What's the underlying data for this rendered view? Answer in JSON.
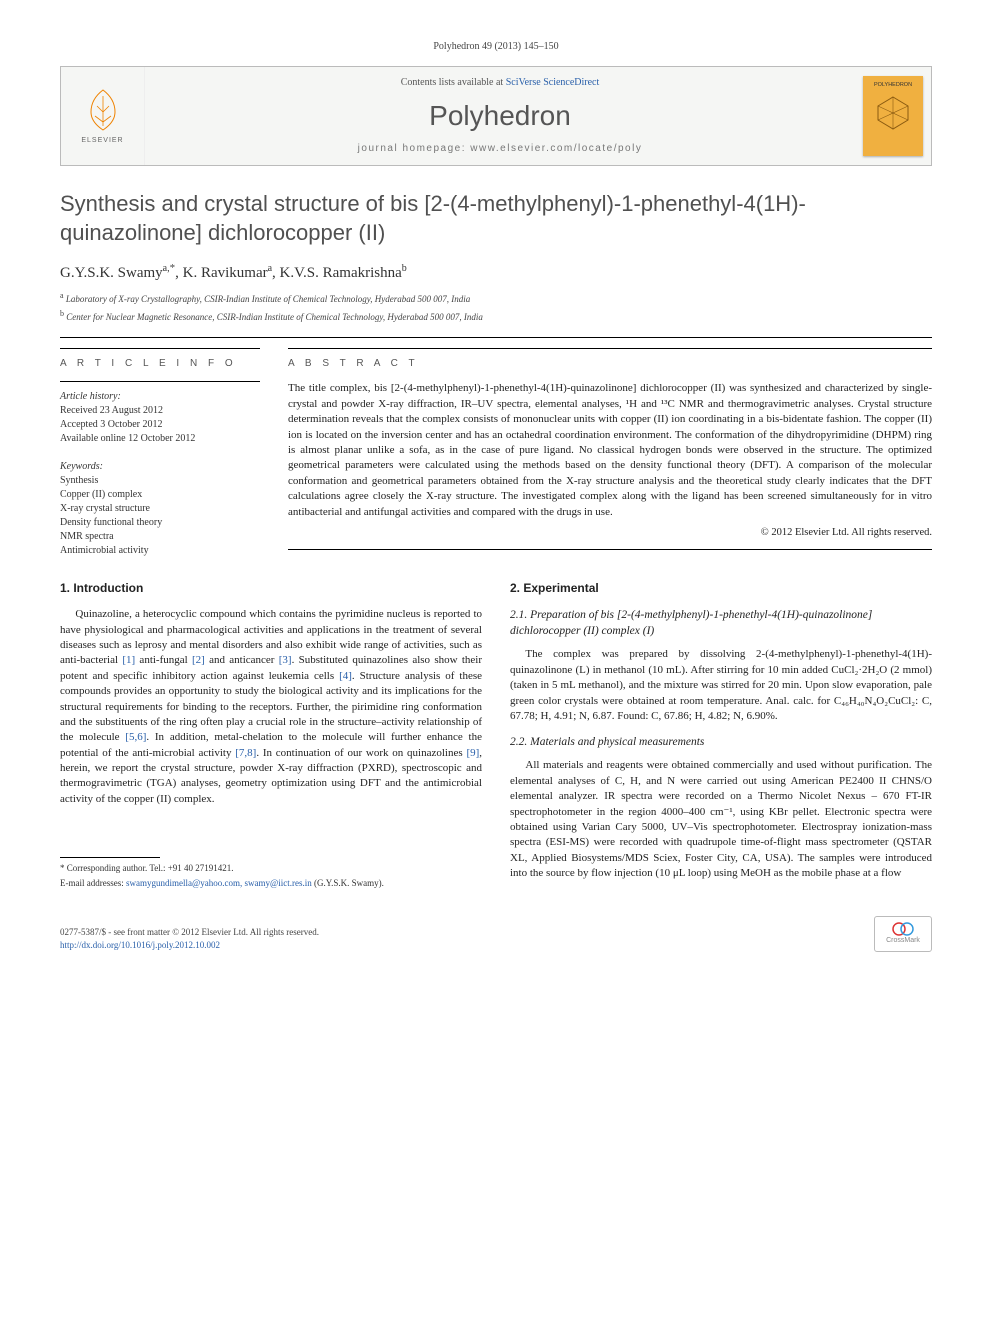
{
  "running_head": "Polyhedron 49 (2013) 145–150",
  "banner": {
    "contents_prefix": "Contents lists available at ",
    "contents_link_text": "SciVerse ScienceDirect",
    "journal": "Polyhedron",
    "homepage_prefix": "journal homepage: ",
    "homepage_url": "www.elsevier.com/locate/poly",
    "elsevier_name": "ELSEVIER",
    "cover_label": "POLYHEDRON",
    "cover_color": "#f0b040",
    "elsevier_orange": "#ef8200"
  },
  "title": "Synthesis and crystal structure of bis [2-(4-methylphenyl)-1-phenethyl-4(1H)-quinazolinone] dichlorocopper (II)",
  "authors_html": "G.Y.S.K. Swamy<sup>a,</sup><span class='corr'>*</span>, K. Ravikumar<sup>a</sup>, K.V.S. Ramakrishna<sup>b</sup>",
  "affiliations": [
    {
      "sup": "a",
      "text": "Laboratory of X-ray Crystallography, CSIR-Indian Institute of Chemical Technology, Hyderabad 500 007, India"
    },
    {
      "sup": "b",
      "text": "Center for Nuclear Magnetic Resonance, CSIR-Indian Institute of Chemical Technology, Hyderabad 500 007, India"
    }
  ],
  "article_info_label": "A R T I C L E   I N F O",
  "abstract_label": "A B S T R A C T",
  "history": {
    "label": "Article history:",
    "received": "Received 23 August 2012",
    "accepted": "Accepted 3 October 2012",
    "online": "Available online 12 October 2012"
  },
  "keywords": {
    "label": "Keywords:",
    "items": [
      "Synthesis",
      "Copper (II) complex",
      "X-ray crystal structure",
      "Density functional theory",
      "NMR spectra",
      "Antimicrobial activity"
    ]
  },
  "abstract": "The title complex, bis [2-(4-methylphenyl)-1-phenethyl-4(1H)-quinazolinone] dichlorocopper (II) was synthesized and characterized by single-crystal and powder X-ray diffraction, IR–UV spectra, elemental analyses, ¹H and ¹³C NMR and thermogravimetric analyses. Crystal structure determination reveals that the complex consists of mononuclear units with copper (II) ion coordinating in a bis-bidentate fashion. The copper (II) ion is located on the inversion center and has an octahedral coordination environment. The conformation of the dihydropyrimidine (DHPM) ring is almost planar unlike a sofa, as in the case of pure ligand. No classical hydrogen bonds were observed in the structure. The optimized geometrical parameters were calculated using the methods based on the density functional theory (DFT). A comparison of the molecular conformation and geometrical parameters obtained from the X-ray structure analysis and the theoretical study clearly indicates that the DFT calculations agree closely the X-ray structure. The investigated complex along with the ligand has been screened simultaneously for in vitro antibacterial and antifungal activities and compared with the drugs in use.",
  "copyright": "© 2012 Elsevier Ltd. All rights reserved.",
  "sections": {
    "intro_heading": "1. Introduction",
    "intro": "Quinazoline, a heterocyclic compound which contains the pyrimidine nucleus is reported to have physiological and pharmacological activities and applications in the treatment of several diseases such as leprosy and mental disorders and also exhibit wide range of activities, such as anti-bacterial [1] anti-fungal [2] and anticancer [3]. Substituted quinazolines also show their potent and specific inhibitory action against leukemia cells [4]. Structure analysis of these compounds provides an opportunity to study the biological activity and its implications for the structural requirements for binding to the receptors. Further, the pirimidine ring conformation and the substituents of the ring often play a crucial role in the structure–activity relationship of the molecule [5,6]. In addition, metal-chelation to the molecule will further enhance the potential of the anti-microbial activity [7,8]. In continuation of our work on quinazolines [9], herein, we report the crystal structure, powder X-ray diffraction (PXRD), spectroscopic and thermogravimetric (TGA) analyses, geometry optimization using DFT and the antimicrobial activity of the copper (II) complex.",
    "exp_heading": "2. Experimental",
    "s21_heading": "2.1. Preparation of bis [2-(4-methylphenyl)-1-phenethyl-4(1H)-quinazolinone] dichlorocopper (II) complex (I)",
    "s21": "The complex was prepared by dissolving 2-(4-methylphenyl)-1-phenethyl-4(1H)-quinazolinone (L) in methanol (10 mL). After stirring for 10 min added CuCl₂·2H₂O (2 mmol) (taken in 5 mL methanol), and the mixture was stirred for 20 min. Upon slow evaporation, pale green color crystals were obtained at room temperature. Anal. calc. for C₄₆H₄₀N₄O₂CuCl₂: C, 67.78; H, 4.91; N, 6.87. Found: C, 67.86; H, 4.82; N, 6.90%.",
    "s22_heading": "2.2. Materials and physical measurements",
    "s22": "All materials and reagents were obtained commercially and used without purification. The elemental analyses of C, H, and N were carried out using American PE2400 II CHNS/O elemental analyzer. IR spectra were recorded on a Thermo Nicolet Nexus – 670 FT-IR spectrophotometer in the region 4000–400 cm⁻¹, using KBr pellet. Electronic spectra were obtained using Varian Cary 5000, UV–Vis spectrophotometer. Electrospray ionization-mass spectra (ESI-MS) were recorded with quadrupole time-of-flight mass spectrometer (QSTAR XL, Applied Biosystems/MDS Sciex, Foster City, CA, USA). The samples were introduced into the source by flow injection (10 μL loop) using MeOH as the mobile phase at a flow"
  },
  "footnotes": {
    "corr": "* Corresponding author. Tel.: +91 40 27191421.",
    "email_label": "E-mail addresses: ",
    "emails": "swamygundimella@yahoo.com, swamy@iict.res.in",
    "email_paren": " (G.Y.S.K. Swamy)."
  },
  "footer": {
    "issn_line": "0277-5387/$ - see front matter © 2012 Elsevier Ltd. All rights reserved.",
    "doi": "http://dx.doi.org/10.1016/j.poly.2012.10.002",
    "crossmark": "CrossMark"
  },
  "link_color": "#2a60aa",
  "rule_color": "#000000"
}
